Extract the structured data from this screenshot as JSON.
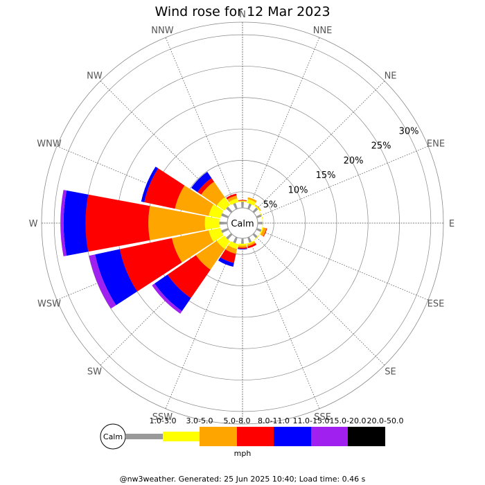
{
  "title": "Wind rose for 12 Mar 2023",
  "footer": "@nw3weather. Generated: 25 Jun 2025 10:40; Load time: 0.46 s",
  "calm_label": "Calm",
  "unit_label": "mph",
  "chart_data": {
    "type": "wind_rose",
    "title": "Wind rose for 12 Mar 2023",
    "directions": [
      "N",
      "NNE",
      "NE",
      "ENE",
      "E",
      "ESE",
      "SE",
      "SSE",
      "S",
      "SSW",
      "SW",
      "WSW",
      "W",
      "WNW",
      "NW",
      "NNW"
    ],
    "radial_ticks": [
      "5%",
      "10%",
      "15%",
      "20%",
      "25%",
      "30%"
    ],
    "radial_tick_values": [
      5,
      10,
      15,
      20,
      25,
      30
    ],
    "radial_max": 32,
    "calm_radius_pct": 3.2,
    "unit": "mph",
    "bins": [
      "1.0-3.0",
      "3.0-5.0",
      "5.0-8.0",
      "8.0-11.0",
      "11.0-15.0",
      "15.0-20.0",
      "20.0-50.0"
    ],
    "bin_colors": [
      "#999999",
      "#ffff00",
      "#ffa500",
      "#ff0000",
      "#0000ff",
      "#a020f0",
      "#000000"
    ],
    "grid": true,
    "cumulative_pct": {
      "N": [
        3.4,
        3.5,
        3.6,
        3.7,
        3.7,
        3.7,
        3.7
      ],
      "NNE": [
        3.3,
        3.9,
        4.2,
        4.2,
        4.2,
        4.2,
        4.2
      ],
      "NE": [
        3.3,
        3.5,
        3.6,
        3.6,
        3.6,
        3.6,
        3.6
      ],
      "ENE": [
        3.2,
        3.3,
        3.3,
        3.3,
        3.3,
        3.3,
        3.3
      ],
      "E": [
        3.2,
        3.3,
        3.3,
        3.3,
        3.3,
        3.3,
        3.3
      ],
      "ESE": [
        3.2,
        3.4,
        3.9,
        4.0,
        4.0,
        4.0,
        4.0
      ],
      "SE": [
        3.2,
        3.3,
        3.3,
        3.3,
        3.3,
        3.3,
        3.3
      ],
      "SSE": [
        3.3,
        3.5,
        3.8,
        4.1,
        4.1,
        4.1,
        4.1
      ],
      "S": [
        3.3,
        3.6,
        3.9,
        4.1,
        4.2,
        4.2,
        4.2
      ],
      "SSW": [
        3.4,
        4.2,
        5.0,
        6.5,
        7.1,
        7.1,
        7.1
      ],
      "SW": [
        3.5,
        5.0,
        9.0,
        14.5,
        17.0,
        17.5,
        17.5
      ],
      "WSW": [
        3.6,
        5.5,
        11.5,
        20.0,
        24.0,
        25.0,
        25.0
      ],
      "W": [
        3.7,
        6.0,
        15.0,
        25.0,
        28.5,
        29.0,
        29.0
      ],
      "WNW": [
        3.6,
        5.5,
        11.0,
        16.0,
        16.5,
        16.5,
        16.5
      ],
      "NW": [
        3.5,
        5.0,
        8.0,
        8.7,
        9.9,
        9.9,
        9.9
      ],
      "NNW": [
        3.4,
        4.0,
        4.5,
        4.8,
        4.8,
        4.8,
        4.8
      ]
    }
  }
}
